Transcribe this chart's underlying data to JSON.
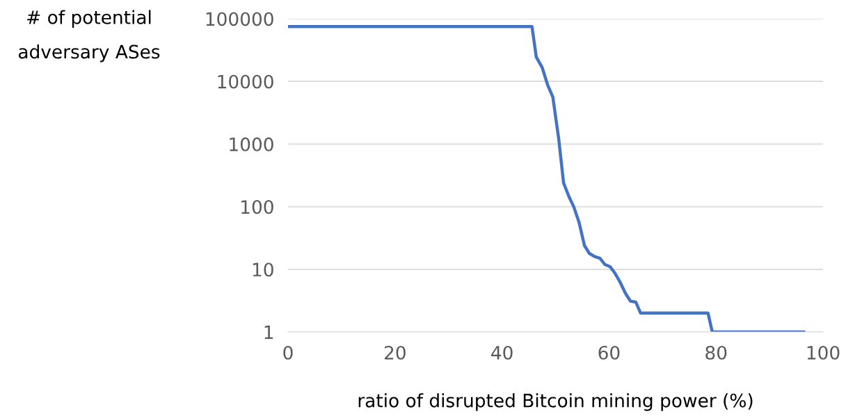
{
  "chart_data": {
    "type": "line",
    "ylabel": "# of potential\nadversary ASes",
    "xlabel": "ratio of disrupted Bitcoin mining power (%)",
    "log": "y",
    "grid": "y",
    "legend": false,
    "marker": "none",
    "line_style": "solid",
    "xlim": [
      0,
      100
    ],
    "xticks": [
      0,
      20,
      40,
      60,
      80,
      100
    ],
    "ylim": [
      1,
      100000
    ],
    "yticks": [
      1,
      10,
      100,
      1000,
      10000,
      100000
    ],
    "series": [
      {
        "color": "#4472c4",
        "x": [
          0,
          45.6,
          46.4,
          47.5,
          48.5,
          49.5,
          50.6,
          51.5,
          52.5,
          53.4,
          54.4,
          55.4,
          56.3,
          57.3,
          58.3,
          59.2,
          60.2,
          61.1,
          62,
          63.1,
          64,
          65,
          65.9,
          78.5,
          79.3,
          96.4
        ],
        "values": [
          75000,
          75000,
          24500,
          16700,
          8900,
          5600,
          1200,
          240,
          145,
          100,
          56,
          24,
          18,
          16,
          15,
          12,
          11,
          8.7,
          6.4,
          4.1,
          3.1,
          3,
          2,
          2,
          1,
          1
        ]
      }
    ]
  }
}
